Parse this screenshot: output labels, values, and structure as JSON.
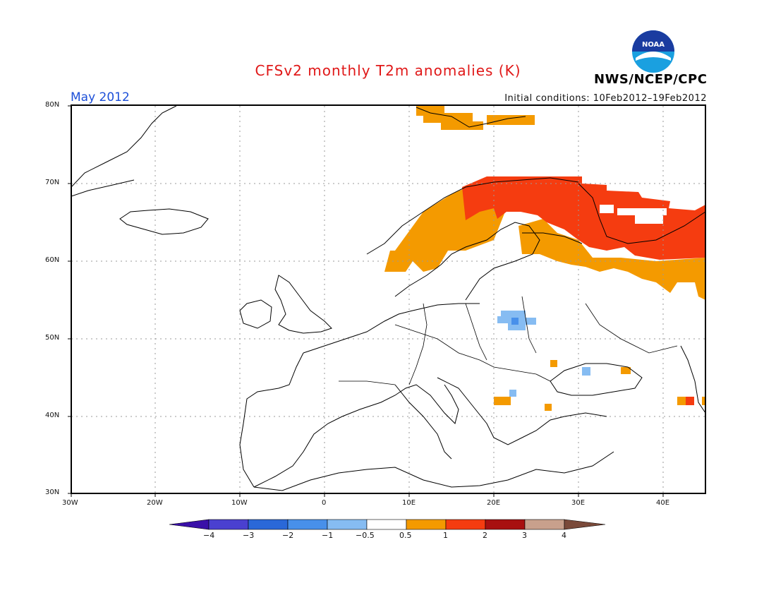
{
  "title": "CFSv2 monthly T2m anomalies (K)",
  "month_label": "May 2012",
  "initial_conditions": "Initial conditions: 10Feb2012–19Feb2012",
  "organization": "NWS/NCEP/CPC",
  "logo_text": "NOAA",
  "lat_ticks": [
    "80N",
    "70N",
    "60N",
    "50N",
    "40N",
    "30N"
  ],
  "lon_ticks": [
    "30W",
    "20W",
    "10W",
    "0",
    "10E",
    "20E",
    "30E",
    "40E"
  ],
  "colorbar": {
    "labels": [
      "−4",
      "−3",
      "−2",
      "−1",
      "−0.5",
      "0.5",
      "1",
      "2",
      "3",
      "4"
    ],
    "colors": [
      "#3a10a8",
      "#4a40d0",
      "#2a68d8",
      "#4890ea",
      "#86bcf2",
      "#ffffff",
      "#f49a00",
      "#f53c10",
      "#a81010",
      "#c8a08c",
      "#7a4a3a"
    ]
  },
  "anomaly_colors": {
    "warm_0_5_to_1": "#f49a00",
    "warm_1_to_2": "#f53c10",
    "cool_minus1_to_minus0_5": "#86bcf2",
    "cool_minus2_to_minus1": "#4890ea"
  }
}
